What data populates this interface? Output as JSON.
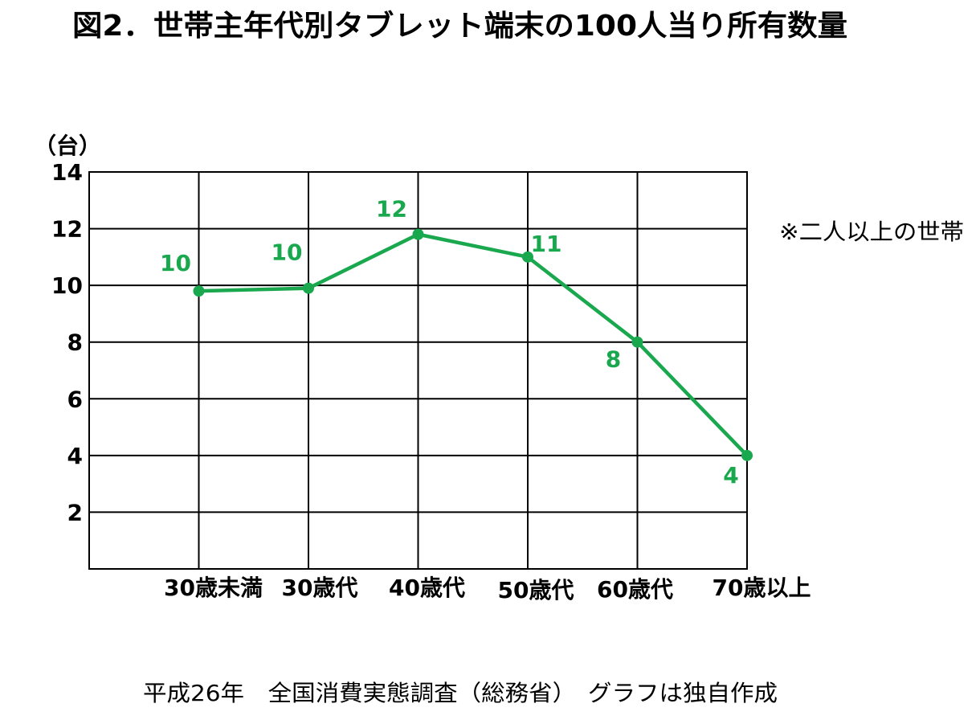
{
  "note": "※二人以上の世帯",
  "source": "平成26年　全国消費実態調査（総務省）　グラフは独自作成",
  "chart_data": {
    "type": "line",
    "title": "図2．世帯主年代別タブレット端末の100人当り所有数量",
    "ylabel": "（台）",
    "categories": [
      "30歳未満",
      "30歳代",
      "40歳代",
      "50歳代",
      "60歳代",
      "70歳以上"
    ],
    "series": [
      {
        "values": [
          9.8,
          9.9,
          11.8,
          11.0,
          8.0,
          4.0
        ],
        "data_labels": [
          "10",
          "10",
          "12",
          "11",
          "8",
          "4"
        ],
        "color": "#1aa84f",
        "markers": true
      }
    ],
    "ylim": [
      0,
      14
    ],
    "yticks": [
      2,
      4,
      6,
      8,
      10,
      12,
      14
    ],
    "grid": true,
    "legend": "none"
  }
}
